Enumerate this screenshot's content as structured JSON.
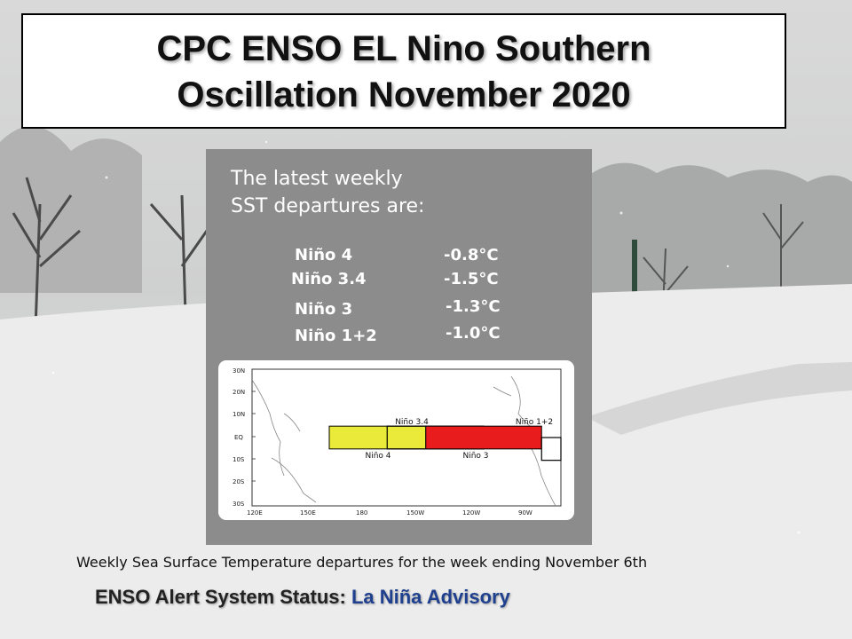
{
  "title": {
    "line1": "CPC ENSO EL Nino Southern",
    "line2": "Oscillation November 2020"
  },
  "panel": {
    "intro_line1": "The latest weekly",
    "intro_line2": "SST departures are:",
    "regions": [
      {
        "name": "Niño 4",
        "value": "-0.8°C"
      },
      {
        "name": "Niño 3.4",
        "value": "-1.5°C"
      },
      {
        "name": "Niño 3",
        "value": "-1.3°C"
      },
      {
        "name": "Niño 1+2",
        "value": "-1.0°C"
      }
    ]
  },
  "map": {
    "lat_labels": [
      "30N",
      "20N",
      "10N",
      "EQ",
      "10S",
      "20S",
      "30S"
    ],
    "lon_labels": [
      "120E",
      "150E",
      "180",
      "150W",
      "120W",
      "90W"
    ],
    "box_labels": {
      "nino34": "Niño 3.4",
      "nino4": "Niño 4",
      "nino3": "Niño 3",
      "nino12": "Niño 1+2"
    },
    "colors": {
      "nino4": "#eaea3a",
      "nino34": "#e81c1c",
      "nino3": "#e81c1c",
      "nino12": "#ffffff"
    }
  },
  "caption": "Weekly Sea Surface Temperature departures for the week ending November  6th",
  "status": {
    "label": "ENSO Alert System Status",
    "separator": ": ",
    "value": "La Niña Advisory"
  }
}
